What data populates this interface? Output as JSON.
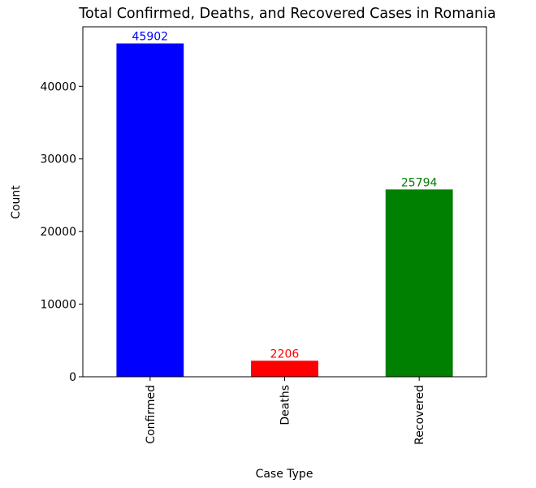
{
  "chart_data": {
    "type": "bar",
    "title": "Total Confirmed, Deaths, and Recovered Cases in Romania",
    "xlabel": "Case Type",
    "ylabel": "Count",
    "categories": [
      "Confirmed",
      "Deaths",
      "Recovered"
    ],
    "values": [
      45902,
      2206,
      25794
    ],
    "value_labels": [
      "45902",
      "2206",
      "25794"
    ],
    "colors": [
      "#0000ff",
      "#ff0000",
      "#008000"
    ],
    "ylim": [
      0,
      48196
    ],
    "yticks": [
      0,
      10000,
      20000,
      30000,
      40000
    ],
    "ytick_labels": [
      "0",
      "10000",
      "20000",
      "30000",
      "40000"
    ],
    "grid": false,
    "legend": "none"
  }
}
